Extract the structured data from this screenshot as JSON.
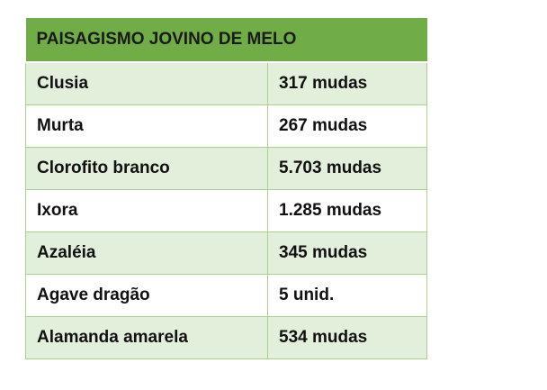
{
  "table": {
    "title": "PAISAGISMO JOVINO DE MELO",
    "rows": [
      {
        "name": "Clusia",
        "qty": "317 mudas"
      },
      {
        "name": "Murta",
        "qty": "267 mudas"
      },
      {
        "name": "Clorofito branco",
        "qty": "5.703 mudas"
      },
      {
        "name": "Ixora",
        "qty": "1.285 mudas"
      },
      {
        "name": "Azaléia",
        "qty": "345 mudas"
      },
      {
        "name": "Agave dragão",
        "qty": "5 unid."
      },
      {
        "name": "Alamanda amarela",
        "qty": "534 mudas"
      }
    ],
    "colors": {
      "header": "#70ad47",
      "band": "#e2efda",
      "border": "#a9d08e"
    }
  }
}
